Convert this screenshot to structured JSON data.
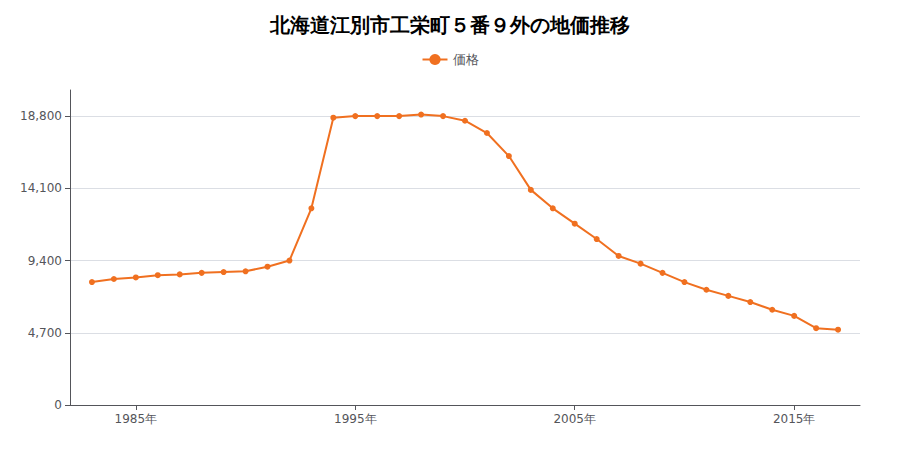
{
  "chart_data": {
    "type": "line",
    "title": "北海道江別市工栄町５番９外の地価推移",
    "x": [
      1983,
      1984,
      1985,
      1986,
      1987,
      1988,
      1989,
      1990,
      1991,
      1992,
      1993,
      1994,
      1995,
      1996,
      1997,
      1998,
      1999,
      2000,
      2001,
      2002,
      2003,
      2004,
      2005,
      2006,
      2007,
      2008,
      2009,
      2010,
      2011,
      2012,
      2013,
      2014,
      2015,
      2016,
      2017
    ],
    "series": [
      {
        "name": "価格",
        "color": "#f07020",
        "marker": "circle",
        "values": [
          8000,
          8200,
          8300,
          8450,
          8500,
          8600,
          8650,
          8700,
          9000,
          9400,
          12800,
          18700,
          18800,
          18800,
          18800,
          18900,
          18800,
          18500,
          17700,
          16200,
          14000,
          12800,
          11800,
          10800,
          9700,
          9200,
          8600,
          8000,
          7500,
          7100,
          6700,
          6200,
          5800,
          5000,
          4900
        ]
      }
    ],
    "xlim": [
      1982,
      2018
    ],
    "xticks": [
      {
        "value": 1985,
        "label": "1985年"
      },
      {
        "value": 1995,
        "label": "1995年"
      },
      {
        "value": 2005,
        "label": "2005年"
      },
      {
        "value": 2015,
        "label": "2015年"
      }
    ],
    "ylim": [
      0,
      20500
    ],
    "yticks": [
      0,
      {
        "value": 4700,
        "label": "4,700"
      },
      {
        "value": 9400,
        "label": "9,400"
      },
      {
        "value": 14100,
        "label": "14,100"
      },
      {
        "value": 18800,
        "label": "18,800"
      }
    ],
    "grid": "y",
    "legend": "top"
  }
}
